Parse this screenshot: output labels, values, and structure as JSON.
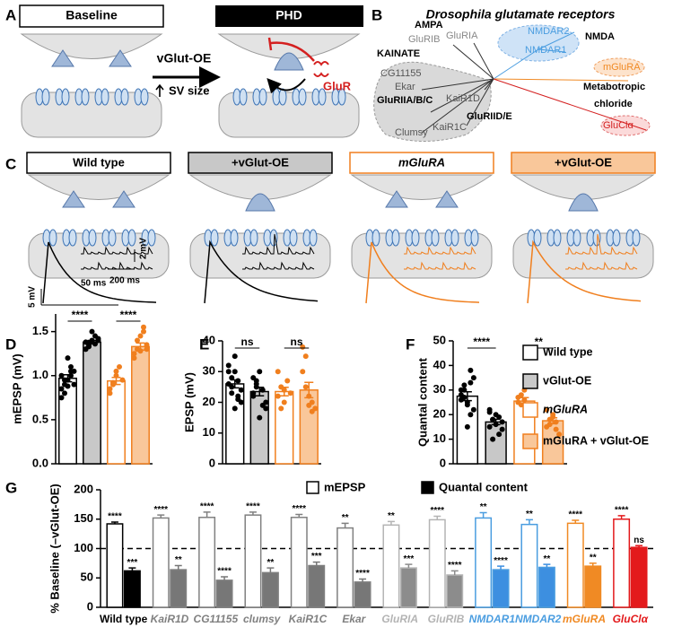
{
  "panel_labels": [
    "A",
    "B",
    "C",
    "D",
    "E",
    "F",
    "G"
  ],
  "panel_a": {
    "baseline": "Baseline",
    "phd": "PHD",
    "arrow_label": "vGlut-OE",
    "sv_size": "SV size",
    "glur": "GluR"
  },
  "panel_b": {
    "title": "Drosophila glutamate receptors",
    "labels": [
      "AMPA",
      "GluRIB",
      "GluRIA",
      "NMDAR2",
      "NMDAR1",
      "NMDA",
      "KAINATE",
      "CG11155",
      "Ekar",
      "GluRIIA/B/C",
      "KaiR1D",
      "GluRIID/E",
      "Clumsy",
      "KaiR1C",
      "mGluRA",
      "Metabotropic",
      "chloride",
      "GluClα"
    ]
  },
  "panel_c": {
    "conditions": [
      "Wild type",
      "+vGlut-OE",
      "mGluRA",
      "+vGlut-OE"
    ],
    "scale_bars": [
      "2 mV",
      "200 ms",
      "5 mV",
      "50 ms"
    ]
  },
  "legend": {
    "labels": [
      "Wild type",
      "vGlut-OE",
      "mGluRA",
      "mGluRA + vGlut-OE"
    ],
    "fills": [
      "#ffffff",
      "#c8c8c8",
      "#ffffff",
      "#f9c79a"
    ],
    "edges": [
      "#000000",
      "#000000",
      "#f07f1e",
      "#f07f1e"
    ]
  },
  "chart_data": [
    {
      "type": "bar",
      "ylabel": "mEPSP (mV)",
      "ylim": [
        0,
        1.7
      ],
      "yticks": [
        {
          "value": 0,
          "label": "0.0"
        },
        0.5,
        {
          "value": 1,
          "label": "1.0"
        },
        1.5
      ],
      "values": [
        0.97,
        1.38,
        0.94,
        1.33
      ],
      "errors": [
        0.04,
        0.02,
        0.04,
        0.04
      ],
      "points": [
        [
          0.85,
          0.9,
          0.95,
          1.0,
          1.05,
          0.75,
          0.8,
          1.2,
          1.1,
          0.9,
          1.0,
          0.95,
          0.88,
          1.05
        ],
        [
          1.3,
          1.35,
          1.4,
          1.45,
          1.42,
          1.38,
          1.33,
          1.5,
          1.36,
          1.4,
          1.3,
          1.37
        ],
        [
          0.85,
          0.9,
          1.0,
          1.1,
          0.95,
          0.8,
          0.92,
          1.05
        ],
        [
          1.25,
          1.3,
          1.45,
          1.5,
          1.35,
          1.2,
          1.4,
          1.28,
          1.55,
          1.3
        ]
      ],
      "annotations": [
        "****",
        "****"
      ]
    },
    {
      "type": "bar",
      "ylabel": "EPSP (mV)",
      "ylim": [
        0,
        40
      ],
      "yticks": [
        0,
        10,
        20,
        30,
        40
      ],
      "values": [
        26,
        23.5,
        23.5,
        24
      ],
      "errors": [
        1.3,
        1.4,
        1.4,
        2.5
      ],
      "points": [
        [
          26,
          28,
          30,
          22,
          20,
          32,
          25,
          18,
          27,
          24,
          30,
          23,
          35,
          21
        ],
        [
          23,
          25,
          30,
          19,
          18,
          22,
          27,
          15,
          24,
          20,
          28,
          26
        ],
        [
          22,
          25,
          20,
          27,
          23,
          30,
          18,
          24
        ],
        [
          38,
          35,
          22,
          20,
          18,
          30,
          25,
          19,
          17
        ]
      ],
      "annotations": [
        "ns",
        "ns"
      ]
    },
    {
      "type": "bar",
      "ylabel": "Quantal content",
      "ylim": [
        0,
        50
      ],
      "yticks": [
        0,
        10,
        20,
        30,
        40,
        50
      ],
      "values": [
        27.5,
        17,
        25.5,
        17.5
      ],
      "errors": [
        1.8,
        1.1,
        1.4,
        1.2
      ],
      "points": [
        [
          28,
          32,
          25,
          38,
          22,
          30,
          27,
          15,
          20,
          35,
          26,
          30,
          24,
          33
        ],
        [
          15,
          18,
          20,
          12,
          17,
          22,
          10,
          16,
          19,
          14,
          21,
          18
        ],
        [
          25,
          28,
          30,
          22,
          20,
          27,
          24,
          26
        ],
        [
          15,
          18,
          20,
          17,
          12,
          22,
          16,
          19,
          14
        ]
      ],
      "annotations": [
        "****",
        "**"
      ]
    },
    {
      "type": "bar",
      "ylabel": "% Baseline (–vGlut-OE)",
      "ylim": [
        0,
        200
      ],
      "yticks": [
        0,
        50,
        100,
        150,
        200
      ],
      "reference_line": 100,
      "categories": [
        "Wild type",
        "KaiR1D",
        "CG11155",
        "clumsy",
        "KaiR1C",
        "Ekar",
        "GluRIA",
        "GluRIB",
        "NMDAR1",
        "NMDAR2",
        "mGluRA",
        "GluClα"
      ],
      "edge_colors": [
        "#000000",
        "#808080",
        "#808080",
        "#808080",
        "#808080",
        "#808080",
        "#b4b4b4",
        "#b4b4b4",
        "#4a9de0",
        "#4a9de0",
        "#f08a24",
        "#e31a1c"
      ],
      "fill_colors": [
        "#000000",
        "#777777",
        "#777777",
        "#777777",
        "#777777",
        "#777777",
        "#8c8c8c",
        "#8c8c8c",
        "#3d8fe0",
        "#3d8fe0",
        "#f08a24",
        "#e31a1c"
      ],
      "series": [
        {
          "name": "mEPSP",
          "values": [
            142,
            152,
            153,
            157,
            153,
            135,
            140,
            149,
            152,
            141,
            143,
            150
          ],
          "errors": [
            3,
            5,
            9,
            5,
            5,
            8,
            6,
            6,
            9,
            8,
            5,
            6
          ],
          "significance": [
            "****",
            "****",
            "****",
            "****",
            "****",
            "**",
            "**",
            "****",
            "**",
            "**",
            "****",
            "****"
          ]
        },
        {
          "name": "Quantal content",
          "values": [
            62,
            64,
            46,
            59,
            71,
            43,
            67,
            55,
            64,
            68,
            70,
            102
          ],
          "errors": [
            5,
            7,
            6,
            8,
            6,
            5,
            6,
            7,
            6,
            5,
            5,
            3
          ],
          "significance": [
            "***",
            "**",
            "****",
            "**",
            "***",
            "****",
            "***",
            "****",
            "****",
            "**",
            "**",
            "ns"
          ]
        }
      ]
    }
  ]
}
